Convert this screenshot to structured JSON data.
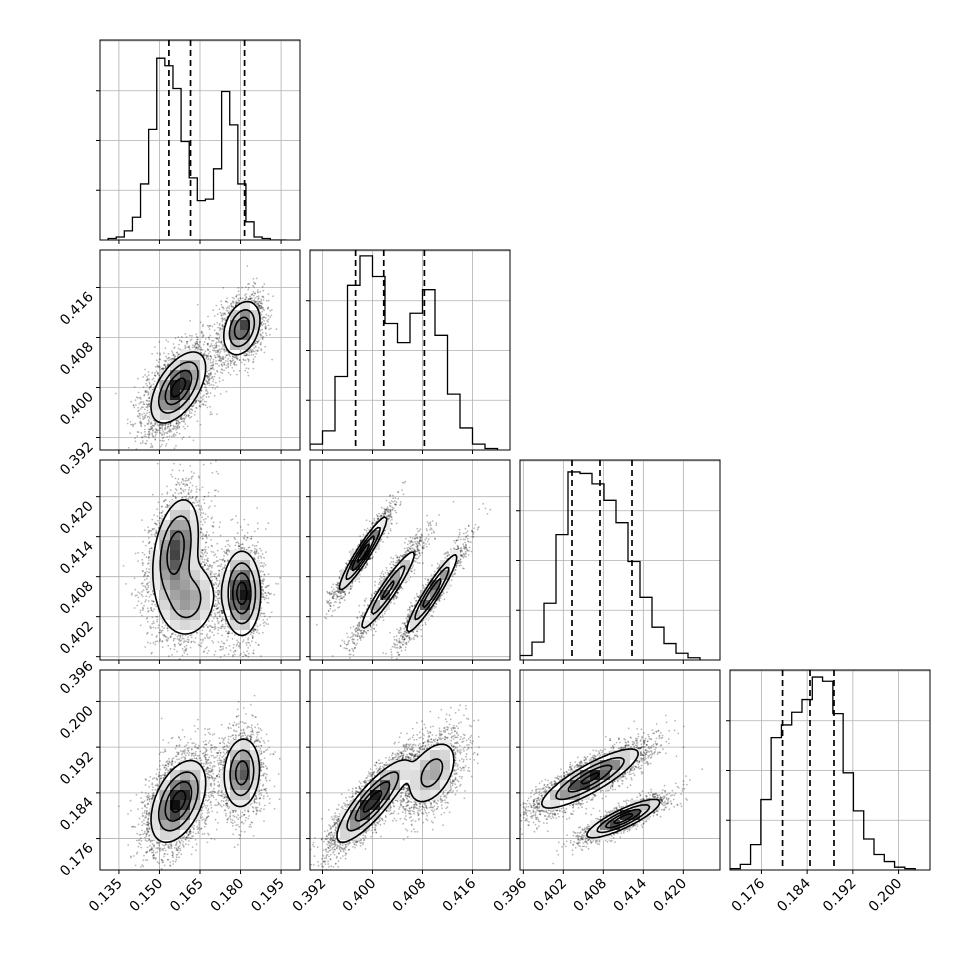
{
  "chart_data": {
    "type": "corner",
    "title": "",
    "grid": true,
    "params": [
      {
        "range": [
          0.128,
          0.202
        ],
        "ticks": [
          0.135,
          0.15,
          0.165,
          0.18,
          0.195
        ],
        "tick_labels": [
          "0.135",
          "0.150",
          "0.165",
          "0.180",
          "0.195"
        ],
        "quantiles": [
          0.1535,
          0.1615,
          0.1815
        ],
        "hist_edges": [
          0.131,
          0.134,
          0.137,
          0.14,
          0.143,
          0.146,
          0.149,
          0.152,
          0.155,
          0.158,
          0.161,
          0.164,
          0.167,
          0.17,
          0.173,
          0.176,
          0.179,
          0.182,
          0.185,
          0.188,
          0.191,
          0.194,
          0.197
        ],
        "hist_counts": [
          10,
          20,
          60,
          150,
          370,
          730,
          1200,
          1150,
          1000,
          650,
          410,
          260,
          270,
          470,
          980,
          760,
          370,
          120,
          20,
          10,
          0,
          0
        ],
        "hist_ymax": 1320,
        "mixture": [
          {
            "w": 0.66,
            "m": 0.157,
            "s": 0.0048
          },
          {
            "w": 0.34,
            "m": 0.1805,
            "s": 0.0033
          }
        ]
      },
      {
        "range": [
          0.39,
          0.422
        ],
        "ticks": [
          0.392,
          0.4,
          0.408,
          0.416
        ],
        "tick_labels": [
          "0.392",
          "0.400",
          "0.408",
          "0.416"
        ],
        "quantiles": [
          0.3973,
          0.4018,
          0.4083
        ],
        "hist_edges": [
          0.39,
          0.392,
          0.394,
          0.396,
          0.398,
          0.4,
          0.402,
          0.404,
          0.406,
          0.408,
          0.41,
          0.412,
          0.414,
          0.416,
          0.418,
          0.42
        ],
        "hist_counts": [
          40,
          130,
          500,
          1120,
          1320,
          1180,
          860,
          730,
          930,
          1090,
          780,
          380,
          150,
          40,
          10
        ],
        "hist_ymax": 1360,
        "mixture": [
          {
            "w": 0.66,
            "m": 0.4,
            "s": 0.0027
          },
          {
            "w": 0.34,
            "m": 0.4095,
            "s": 0.0021
          }
        ]
      },
      {
        "range": [
          0.3955,
          0.4255
        ],
        "ticks": [
          0.396,
          0.402,
          0.408,
          0.414,
          0.42
        ],
        "tick_labels": [
          "0.396",
          "0.402",
          "0.408",
          "0.414",
          "0.420"
        ],
        "quantiles": [
          0.4033,
          0.4075,
          0.4123
        ],
        "hist_edges": [
          0.3955,
          0.3973,
          0.3991,
          0.4009,
          0.4027,
          0.4045,
          0.4063,
          0.4081,
          0.4099,
          0.4117,
          0.4135,
          0.4153,
          0.4171,
          0.4189,
          0.4207,
          0.4225
        ],
        "hist_counts": [
          30,
          120,
          380,
          840,
          1260,
          1250,
          1180,
          1070,
          920,
          660,
          420,
          220,
          110,
          45,
          15
        ],
        "hist_ymax": 1340,
        "mixture": [
          {
            "w": 1.0,
            "m": 0.4076,
            "s": 0.0036
          }
        ]
      },
      {
        "range": [
          0.1705,
          0.2055
        ],
        "ticks": [
          0.176,
          0.184,
          0.192,
          0.2
        ],
        "tick_labels": [
          "0.176",
          "0.184",
          "0.192",
          "0.200"
        ],
        "quantiles": [
          0.1797,
          0.1845,
          0.1887
        ],
        "hist_edges": [
          0.1705,
          0.1723,
          0.1741,
          0.1759,
          0.1777,
          0.1795,
          0.1813,
          0.1831,
          0.1849,
          0.1867,
          0.1885,
          0.1903,
          0.1921,
          0.1939,
          0.1957,
          0.1975,
          0.1993,
          0.2011,
          0.2029
        ],
        "hist_counts": [
          10,
          40,
          180,
          500,
          940,
          1030,
          1120,
          1210,
          1370,
          1340,
          1110,
          690,
          420,
          220,
          110,
          60,
          20,
          10
        ],
        "hist_ymax": 1420,
        "mixture": [
          {
            "w": 1.0,
            "m": 0.1845,
            "s": 0.0035
          }
        ]
      }
    ],
    "pairs": [
      {
        "row": 1,
        "col": 0,
        "components": [
          {
            "w": 0.66,
            "mx": 0.157,
            "my": 0.4,
            "sx": 0.0048,
            "sy": 0.0027,
            "rho": 0.55
          },
          {
            "w": 0.34,
            "mx": 0.1805,
            "my": 0.4095,
            "sx": 0.0033,
            "sy": 0.0021,
            "rho": 0.3
          }
        ]
      },
      {
        "row": 2,
        "col": 0,
        "components": [
          {
            "w": 0.4,
            "mx": 0.156,
            "my": 0.412,
            "sx": 0.0042,
            "sy": 0.0038,
            "rho": 0.35
          },
          {
            "w": 0.26,
            "mx": 0.1605,
            "my": 0.4045,
            "sx": 0.0055,
            "sy": 0.003,
            "rho": 0.1
          },
          {
            "w": 0.34,
            "mx": 0.1805,
            "my": 0.4055,
            "sx": 0.0033,
            "sy": 0.003,
            "rho": 0.0
          }
        ]
      },
      {
        "row": 2,
        "col": 1,
        "components": [
          {
            "w": 0.34,
            "mx": 0.3985,
            "my": 0.4115,
            "sx": 0.0018,
            "sy": 0.0026,
            "rho": 0.94
          },
          {
            "w": 0.32,
            "mx": 0.4025,
            "my": 0.406,
            "sx": 0.0022,
            "sy": 0.003,
            "rho": 0.94
          },
          {
            "w": 0.34,
            "mx": 0.4095,
            "my": 0.4055,
            "sx": 0.002,
            "sy": 0.0029,
            "rho": 0.94
          }
        ]
      },
      {
        "row": 3,
        "col": 0,
        "components": [
          {
            "w": 0.66,
            "mx": 0.157,
            "my": 0.1825,
            "sx": 0.0048,
            "sy": 0.0034,
            "rho": 0.45
          },
          {
            "w": 0.34,
            "mx": 0.1805,
            "my": 0.1875,
            "sx": 0.0033,
            "sy": 0.003,
            "rho": 0.1
          }
        ]
      },
      {
        "row": 3,
        "col": 1,
        "components": [
          {
            "w": 0.66,
            "mx": 0.4,
            "my": 0.1825,
            "sx": 0.0027,
            "sy": 0.0034,
            "rho": 0.85
          },
          {
            "w": 0.34,
            "mx": 0.4095,
            "my": 0.1875,
            "sx": 0.0021,
            "sy": 0.003,
            "rho": 0.45
          }
        ]
      },
      {
        "row": 3,
        "col": 2,
        "components": [
          {
            "w": 0.66,
            "mx": 0.406,
            "my": 0.1865,
            "sx": 0.0035,
            "sy": 0.0025,
            "rho": 0.85
          },
          {
            "w": 0.34,
            "mx": 0.411,
            "my": 0.1795,
            "sx": 0.0026,
            "sy": 0.0016,
            "rho": 0.85
          }
        ]
      }
    ]
  }
}
